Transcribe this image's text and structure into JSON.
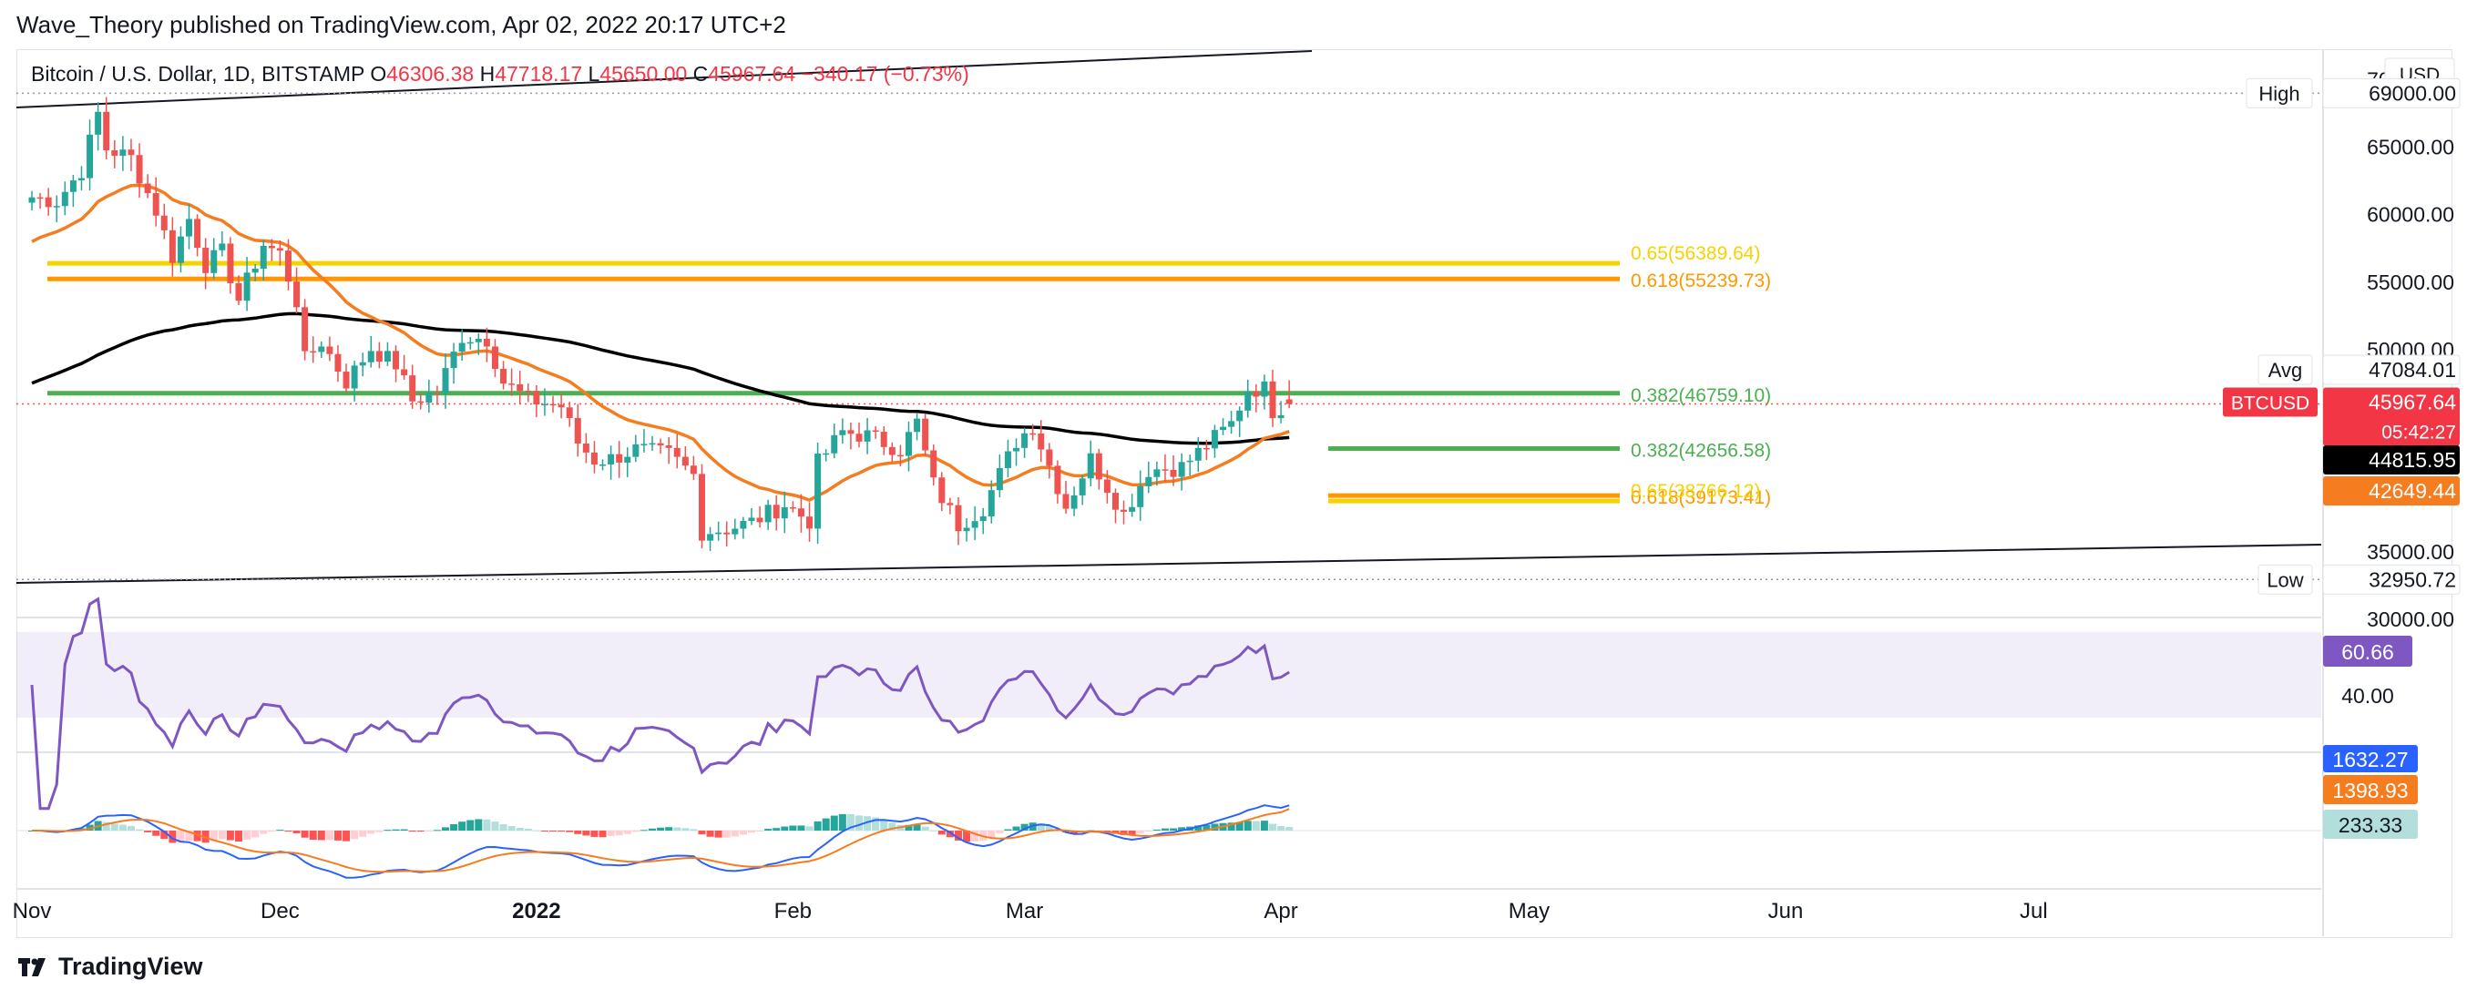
{
  "header": {
    "publisher_line": "Wave_Theory published on TradingView.com, Apr 02, 2022 20:17 UTC+2"
  },
  "title_row": {
    "symbol": "Bitcoin / U.S. Dollar, 1D, BITSTAMP",
    "o_label": "O",
    "o_value": "46306.38",
    "h_label": "H",
    "h_value": "47718.17",
    "l_label": "L",
    "l_value": "45650.00",
    "c_label": "C",
    "c_value": "45967.64",
    "change": "−340.17 (−0.73%)"
  },
  "footer": {
    "brand": "TradingView"
  },
  "colors": {
    "up": "#26a69a",
    "down": "#ef5350",
    "ema_short": "#f57c1f",
    "ma_long": "#000000",
    "fib_yellow": "#f5d300",
    "fib_orange": "#ff9800",
    "fib_green": "#4caf50",
    "rsi": "#7e57c2",
    "macd": "#2962ff",
    "signal": "#f57c1f"
  },
  "chart_data": [
    {
      "type": "candlestick",
      "name": "BTCUSD",
      "ylim": [
        30000,
        72000
      ],
      "y_tick_labels": [
        "70000.00",
        "65000.00",
        "60000.00",
        "55000.00",
        "50000.00",
        "35000.00",
        "30000.00"
      ],
      "x_tick_labels": [
        "Nov",
        "Dec",
        "2022",
        "Feb",
        "Mar",
        "Apr",
        "May",
        "Jun",
        "Jul"
      ],
      "currency_badge": "USD",
      "last_price_label": "BTCUSD",
      "countdown": "05:42:27",
      "price_tags": [
        {
          "label": "High",
          "value": "69000.00"
        },
        {
          "label": "Avg",
          "value": "47084.01"
        },
        {
          "label": "",
          "value": "45967.64"
        },
        {
          "label": "",
          "value": "44815.95"
        },
        {
          "label": "",
          "value": "42649.44"
        },
        {
          "label": "Low",
          "value": "32950.72"
        }
      ],
      "fib_levels": [
        {
          "label": "0.65(56389.64)",
          "value": 56389.64,
          "color": "#f5d300"
        },
        {
          "label": "0.618(55239.73)",
          "value": 55239.73,
          "color": "#ff9800"
        },
        {
          "label": "0.382(46759.10)",
          "value": 46759.1,
          "color": "#4caf50"
        },
        {
          "label": "0.382(42656.58)",
          "value": 42656.58,
          "color": "#4caf50"
        },
        {
          "label": "0.618(39173.41)",
          "value": 39173.41,
          "color": "#ff9800"
        },
        {
          "label": "0.65(38766.12)",
          "value": 38766.12,
          "color": "#f5d300"
        }
      ],
      "close_points": [
        [
          "2021-11-01",
          61300
        ],
        [
          "2021-11-04",
          61000
        ],
        [
          "2021-11-07",
          63300
        ],
        [
          "2021-11-09",
          67500
        ],
        [
          "2021-11-10",
          64900
        ],
        [
          "2021-11-13",
          64200
        ],
        [
          "2021-11-16",
          60300
        ],
        [
          "2021-11-18",
          56900
        ],
        [
          "2021-11-20",
          59700
        ],
        [
          "2021-11-22",
          56300
        ],
        [
          "2021-11-24",
          57200
        ],
        [
          "2021-11-26",
          53700
        ],
        [
          "2021-11-29",
          57800
        ],
        [
          "2021-12-01",
          57100
        ],
        [
          "2021-12-03",
          53600
        ],
        [
          "2021-12-04",
          49200
        ],
        [
          "2021-12-06",
          50600
        ],
        [
          "2021-12-09",
          47600
        ],
        [
          "2021-12-12",
          50100
        ],
        [
          "2021-12-15",
          48900
        ],
        [
          "2021-12-17",
          46200
        ],
        [
          "2021-12-20",
          46900
        ],
        [
          "2021-12-23",
          51000
        ],
        [
          "2021-12-26",
          50800
        ],
        [
          "2021-12-28",
          47600
        ],
        [
          "2021-12-31",
          46300
        ],
        [
          "2022-01-04",
          45800
        ],
        [
          "2022-01-06",
          43100
        ],
        [
          "2022-01-08",
          41800
        ],
        [
          "2022-01-10",
          41900
        ],
        [
          "2022-01-13",
          42600
        ],
        [
          "2022-01-17",
          42200
        ],
        [
          "2022-01-20",
          40700
        ],
        [
          "2022-01-21",
          36500
        ],
        [
          "2022-01-24",
          36700
        ],
        [
          "2022-01-27",
          37200
        ],
        [
          "2022-01-31",
          38500
        ],
        [
          "2022-02-03",
          37300
        ],
        [
          "2022-02-04",
          41600
        ],
        [
          "2022-02-07",
          43900
        ],
        [
          "2022-02-10",
          43600
        ],
        [
          "2022-02-14",
          42600
        ],
        [
          "2022-02-16",
          44600
        ],
        [
          "2022-02-18",
          40000
        ],
        [
          "2022-02-21",
          37000
        ],
        [
          "2022-02-24",
          38300
        ],
        [
          "2022-02-28",
          43200
        ],
        [
          "2022-03-02",
          44400
        ],
        [
          "2022-03-06",
          38400
        ],
        [
          "2022-03-09",
          41900
        ],
        [
          "2022-03-13",
          37800
        ],
        [
          "2022-03-16",
          41100
        ],
        [
          "2022-03-20",
          41300
        ],
        [
          "2022-03-23",
          42900
        ],
        [
          "2022-03-26",
          44500
        ],
        [
          "2022-03-28",
          47100
        ],
        [
          "2022-03-30",
          47100
        ],
        [
          "2022-03-31",
          45500
        ],
        [
          "2022-04-02",
          45967.64
        ]
      ],
      "ma_long_value": "44815.95",
      "ema_short_value": "42649.44"
    },
    {
      "type": "line",
      "name": "RSI",
      "ylim": [
        25,
        85
      ],
      "y_tick_labels": [
        "40.00"
      ],
      "last_value": "60.66"
    },
    {
      "type": "macd",
      "name": "MACD",
      "last_macd": "1632.27",
      "last_signal": "1398.93",
      "last_histogram": "233.33"
    }
  ]
}
